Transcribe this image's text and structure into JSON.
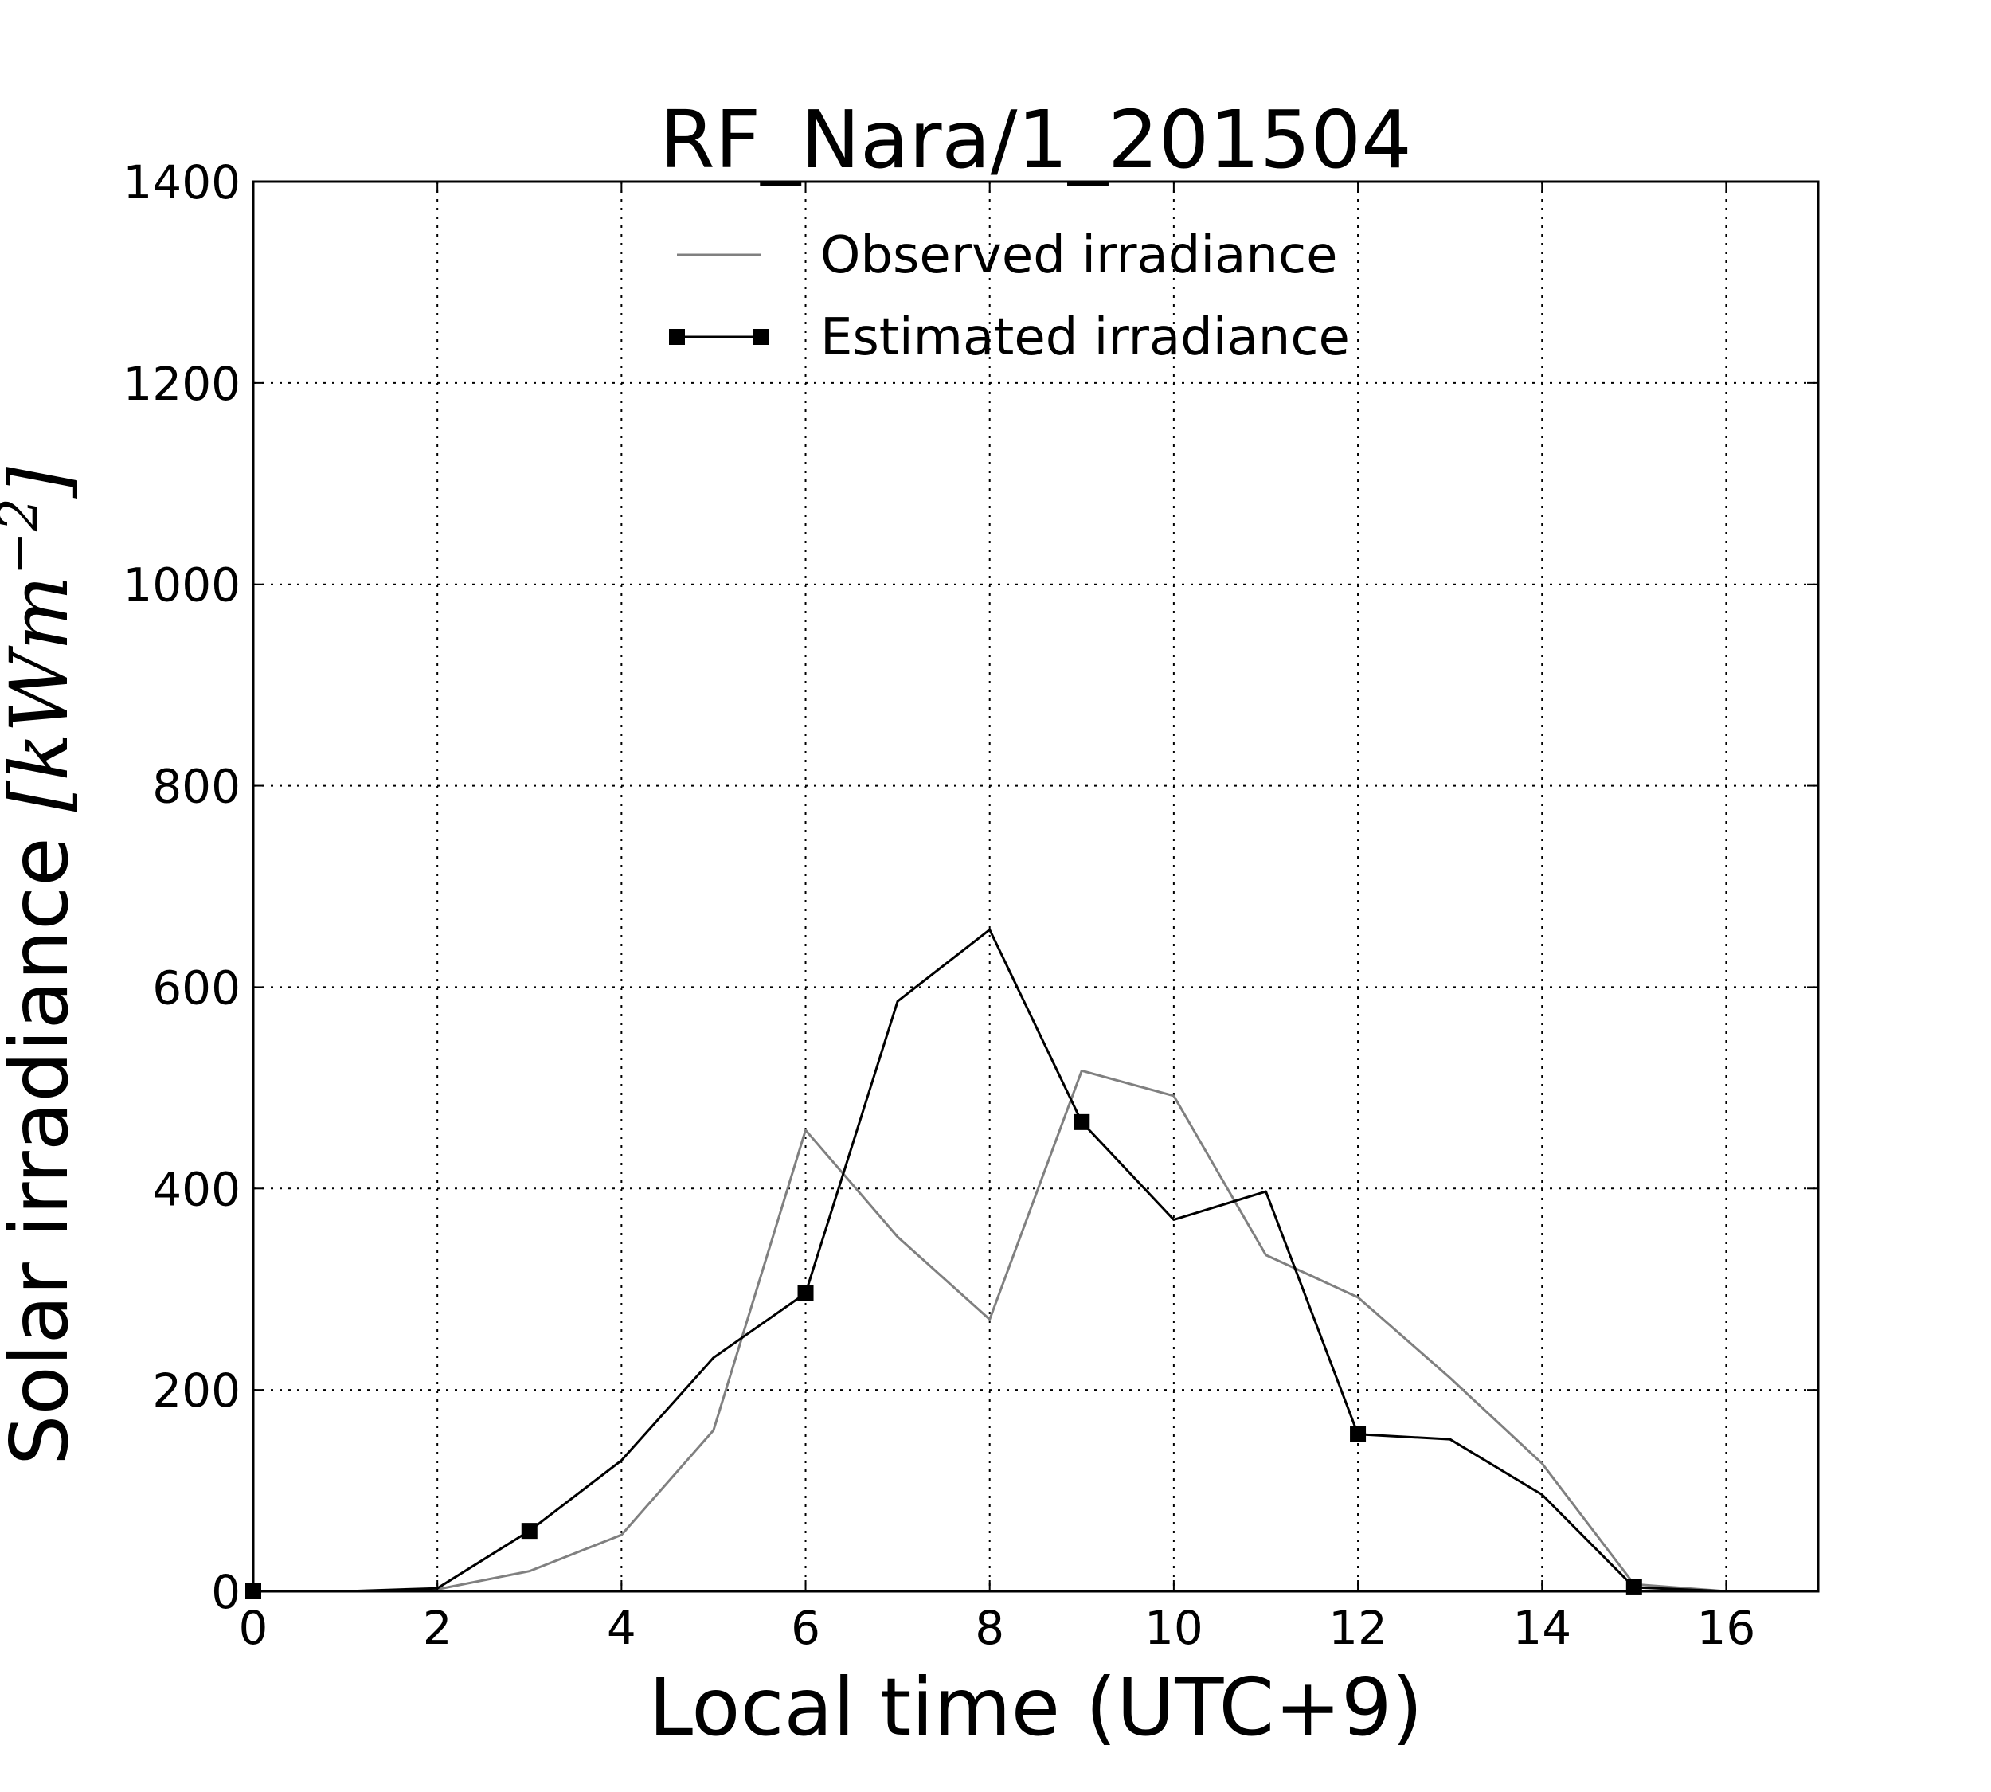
{
  "chart_data": {
    "type": "line",
    "title": "RF_Nara/1_201504",
    "xlabel": "Local time (UTC+9)",
    "ylabel_prefix": "Solar irradiance ",
    "ylabel_unit": "[kWm",
    "ylabel_exp": "−2",
    "ylabel_close": "]",
    "xlim": [
      0,
      17
    ],
    "ylim": [
      0,
      1400
    ],
    "xticks": [
      0,
      2,
      4,
      6,
      8,
      10,
      12,
      14,
      16
    ],
    "yticks": [
      0,
      200,
      400,
      600,
      800,
      1000,
      1200,
      1400
    ],
    "grid": true,
    "legend_position": "top-center",
    "series": [
      {
        "name": "Observed irradiance",
        "color": "#808080",
        "marker": "none",
        "x": [
          0,
          1,
          2,
          3,
          4,
          5,
          6,
          7,
          8,
          9,
          10,
          11,
          12,
          13,
          14,
          15,
          16,
          17
        ],
        "y": [
          0,
          0,
          2,
          20,
          56,
          160,
          458,
          352,
          270,
          517,
          492,
          334,
          292,
          212,
          127,
          7,
          0,
          0
        ]
      },
      {
        "name": "Estimated irradiance",
        "color": "#000000",
        "marker": "square",
        "marker_every": 3,
        "x": [
          0,
          1,
          2,
          3,
          4,
          5,
          6,
          7,
          8,
          9,
          10,
          11,
          12,
          13,
          14,
          15,
          16,
          17
        ],
        "y": [
          0,
          0,
          3,
          60,
          130,
          232,
          296,
          586,
          657,
          466,
          369,
          397,
          156,
          151,
          96,
          4,
          0,
          0
        ]
      }
    ]
  }
}
